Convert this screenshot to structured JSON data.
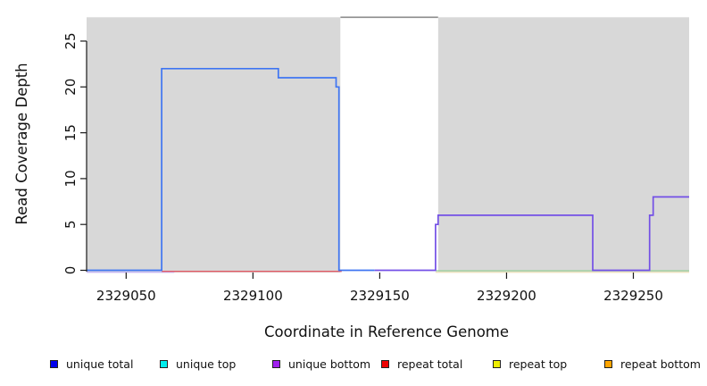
{
  "chart_data": {
    "type": "line",
    "title": "",
    "xlabel": "Coordinate in Reference Genome",
    "ylabel": "Read Coverage Depth",
    "xlim": [
      2329034.4,
      2329272
    ],
    "ylim": [
      0,
      27.6
    ],
    "x_ticks": [
      2329050,
      2329100,
      2329150,
      2329200,
      2329250
    ],
    "y_ticks": [
      0,
      5,
      10,
      15,
      20,
      25
    ],
    "grid": false,
    "plot_bg_color": "#d8d8d8",
    "uncovered_region": {
      "start": 2329134.5,
      "end": 2329173,
      "fill": "#ffffff",
      "top_border_color": "#8c8c8c"
    },
    "series": [
      {
        "name": "unique bottom baseline fringe",
        "color": "#c8b6f2",
        "width": 1.3,
        "dy": 2.2,
        "points": [
          [
            2329034.4,
            0
          ],
          [
            2329069,
            0
          ]
        ]
      },
      {
        "name": "repeat total baseline",
        "color": "#e25b66",
        "width": 1.3,
        "dy": 1.2,
        "points": [
          [
            2329064,
            0
          ],
          [
            2329135,
            0
          ]
        ]
      },
      {
        "name": "repeat baseline fringe",
        "color": "#ece0be",
        "width": 1.3,
        "dy": 2.2,
        "points": [
          [
            2329172,
            0
          ],
          [
            2329272,
            0
          ]
        ]
      },
      {
        "name": "right baseline green",
        "color": "#98d098",
        "width": 1.3,
        "dy": 0.5,
        "points": [
          [
            2329172,
            0
          ],
          [
            2329272,
            0
          ]
        ]
      },
      {
        "name": "unique total",
        "color": "#3f75f2",
        "width": 1.7,
        "dy": 0,
        "points": [
          [
            2329034.4,
            0
          ],
          [
            2329064,
            0
          ],
          [
            2329064,
            22
          ],
          [
            2329110,
            22
          ],
          [
            2329110,
            21
          ],
          [
            2329132.8,
            21
          ],
          [
            2329132.8,
            20
          ],
          [
            2329133.9,
            20
          ],
          [
            2329133.9,
            0
          ],
          [
            2329148,
            0
          ]
        ]
      },
      {
        "name": "unique bottom",
        "color": "#7350e6",
        "width": 1.7,
        "dy": 0,
        "points": [
          [
            2329148,
            0
          ],
          [
            2329172,
            0
          ],
          [
            2329172,
            5
          ],
          [
            2329173,
            5
          ],
          [
            2329173,
            6
          ],
          [
            2329234,
            6
          ],
          [
            2329234,
            0
          ],
          [
            2329256.4,
            0
          ],
          [
            2329256.4,
            6
          ],
          [
            2329257.8,
            6
          ],
          [
            2329257.8,
            8
          ],
          [
            2329272,
            8
          ]
        ]
      }
    ],
    "legend": [
      {
        "label": "unique total",
        "color": "#0000ee"
      },
      {
        "label": "unique top",
        "color": "#00eeee"
      },
      {
        "label": "unique bottom",
        "color": "#a020f0"
      },
      {
        "label": "repeat total",
        "color": "#ee0000"
      },
      {
        "label": "repeat top",
        "color": "#eeee00"
      },
      {
        "label": "repeat bottom",
        "color": "#ffa500"
      }
    ],
    "legend_position": "bottom"
  }
}
